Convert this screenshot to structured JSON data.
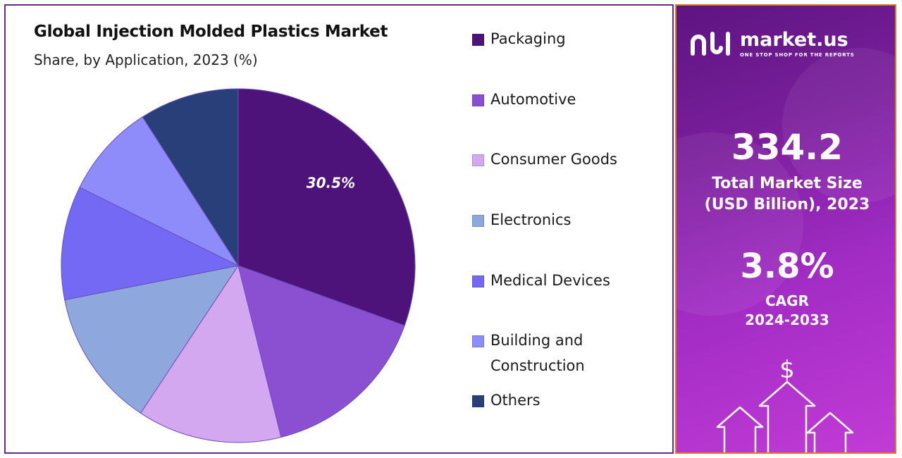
{
  "chart_data": {
    "type": "pie",
    "title": "Global Injection Molded Plastics Market",
    "subtitle": "Share, by Application, 2023 (%)",
    "categories": [
      "Packaging",
      "Automotive",
      "Consumer Goods",
      "Electronics",
      "Medical Devices",
      "Building and Construction",
      "Others"
    ],
    "values": [
      30.5,
      15.6,
      13.2,
      12.6,
      10.4,
      8.6,
      9.1
    ],
    "data_labels": [
      "30.5%",
      "",
      "",
      "",
      "",
      "",
      ""
    ],
    "legend_position": "right",
    "colors": [
      "#4d137a",
      "#8b4fd2",
      "#d4a8f0",
      "#8ea8dd",
      "#7469f4",
      "#8e8cfa",
      "#283f7a"
    ]
  },
  "legend": {
    "items": [
      {
        "label": "Packaging",
        "color": "#4d137a"
      },
      {
        "label": "Automotive",
        "color": "#8b4fd2"
      },
      {
        "label": "Consumer Goods",
        "color": "#d4a8f0"
      },
      {
        "label": "Electronics",
        "color": "#8ea8dd"
      },
      {
        "label": "Medical Devices",
        "color": "#7469f4"
      },
      {
        "label": "Building and Construction",
        "color": "#8e8cfa"
      },
      {
        "label": "Others",
        "color": "#283f7a"
      }
    ]
  },
  "panel": {
    "brand_name": "market.us",
    "brand_tagline": "ONE STOP SHOP FOR THE REPORTS",
    "market_size_value": "334.2",
    "market_size_label_1": "Total Market Size",
    "market_size_label_2": "(USD Billion), 2023",
    "cagr_value": "3.8%",
    "cagr_label_1": "CAGR",
    "cagr_label_2": "2024-2033",
    "dollar_symbol": "$",
    "accent_border": "#e07a1f"
  }
}
